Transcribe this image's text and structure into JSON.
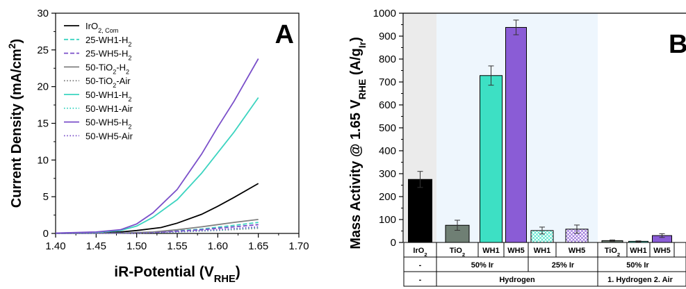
{
  "chart_data": [
    {
      "panel": "A",
      "type": "line",
      "xlabel": "iR-Potential (V",
      "xlabel_sub": "RHE",
      "xlabel_end": ")",
      "ylabel": "Current Density (mA/cm",
      "ylabel_sup": "2",
      "ylabel_end": ")",
      "xlim": [
        1.4,
        1.7
      ],
      "ylim": [
        0,
        30
      ],
      "xticks": [
        "1.40",
        "1.45",
        "1.50",
        "1.55",
        "1.60",
        "1.65",
        "1.70"
      ],
      "yticks": [
        "0",
        "5",
        "10",
        "15",
        "20",
        "25",
        "30"
      ],
      "legend_position": "top-right",
      "series": [
        {
          "name": "IrO",
          "sub": "2, Com",
          "color": "#000000",
          "dash": "solid",
          "x": [
            1.4,
            1.45,
            1.48,
            1.5,
            1.53,
            1.55,
            1.58,
            1.6,
            1.62,
            1.65
          ],
          "y": [
            0.05,
            0.1,
            0.2,
            0.4,
            0.8,
            1.4,
            2.6,
            3.7,
            4.9,
            6.8
          ]
        },
        {
          "name": "25-WH1-H",
          "sub": "2",
          "color": "#3cd4c0",
          "dash": "dashed",
          "x": [
            1.4,
            1.48,
            1.52,
            1.55,
            1.58,
            1.6,
            1.62,
            1.65
          ],
          "y": [
            0.0,
            0.05,
            0.15,
            0.35,
            0.6,
            0.85,
            1.1,
            1.5
          ]
        },
        {
          "name": "25-WH5-H",
          "sub": "2",
          "color": "#7a4fc9",
          "dash": "dashed",
          "x": [
            1.4,
            1.48,
            1.52,
            1.55,
            1.58,
            1.6,
            1.62,
            1.65
          ],
          "y": [
            0.0,
            0.05,
            0.12,
            0.3,
            0.5,
            0.7,
            0.9,
            1.2
          ]
        },
        {
          "name": "50-TiO",
          "sub": "2",
          "name_end": "-H",
          "sub2": "2",
          "color": "#808080",
          "dash": "solid",
          "x": [
            1.4,
            1.48,
            1.52,
            1.55,
            1.58,
            1.6,
            1.62,
            1.65
          ],
          "y": [
            0.0,
            0.05,
            0.2,
            0.5,
            0.9,
            1.2,
            1.5,
            1.9
          ]
        },
        {
          "name": "50-TiO",
          "sub": "2",
          "name_end": "-Air",
          "sub2": "",
          "color": "#808080",
          "dash": "dotted",
          "x": [
            1.4,
            1.5,
            1.55,
            1.6,
            1.65
          ],
          "y": [
            0.0,
            0.05,
            0.2,
            0.4,
            0.7
          ]
        },
        {
          "name": "50-WH1-H",
          "sub": "2",
          "color": "#3cd4c0",
          "dash": "solid",
          "x": [
            1.4,
            1.45,
            1.48,
            1.5,
            1.52,
            1.55,
            1.58,
            1.6,
            1.62,
            1.65
          ],
          "y": [
            0.05,
            0.15,
            0.4,
            1.0,
            2.2,
            4.6,
            8.2,
            11.0,
            13.8,
            18.5
          ]
        },
        {
          "name": "50-WH1-Air",
          "sub": "",
          "color": "#3cd4c0",
          "dash": "dotted",
          "x": [
            1.4,
            1.5,
            1.55,
            1.6,
            1.65
          ],
          "y": [
            0.0,
            0.05,
            0.2,
            0.45,
            0.8
          ]
        },
        {
          "name": "50-WH5-H",
          "sub": "2",
          "color": "#7a4fc9",
          "dash": "solid",
          "x": [
            1.4,
            1.45,
            1.48,
            1.5,
            1.52,
            1.55,
            1.58,
            1.6,
            1.62,
            1.65
          ],
          "y": [
            0.05,
            0.2,
            0.5,
            1.3,
            2.8,
            6.0,
            10.8,
            14.5,
            18.0,
            23.8
          ]
        },
        {
          "name": "50-WH5-Air",
          "sub": "",
          "color": "#7a4fc9",
          "dash": "dotted",
          "x": [
            1.4,
            1.5,
            1.55,
            1.6,
            1.65
          ],
          "y": [
            0.0,
            0.05,
            0.25,
            0.5,
            0.9
          ]
        }
      ]
    },
    {
      "panel": "B",
      "type": "bar",
      "ylabel": "Mass Activity @ 1.65 V",
      "ylabel_sub": "RHE",
      "ylabel_mid": " (A/g",
      "ylabel_sub2": "Ir",
      "ylabel_end": ")",
      "ylim": [
        0,
        1000
      ],
      "yticks": [
        "0",
        "100",
        "200",
        "300",
        "400",
        "500",
        "600",
        "700",
        "800",
        "900",
        "1000"
      ],
      "bars": [
        {
          "label": "IrO",
          "label_sub": "2",
          "value": 275,
          "error": 35,
          "color": "#000000",
          "pattern": "solid"
        },
        {
          "label": "TiO",
          "label_sub": "2",
          "value": 75,
          "error": 22,
          "color": "#6f7f74",
          "pattern": "solid"
        },
        {
          "label": "WH1",
          "label_sub": "",
          "value": 728,
          "error": 42,
          "color": "#3de0c4",
          "pattern": "solid"
        },
        {
          "label": "WH5",
          "label_sub": "",
          "value": 938,
          "error": 32,
          "color": "#8a5cd6",
          "pattern": "solid"
        },
        {
          "label": "WH1",
          "label_sub": "",
          "value": 52,
          "error": 15,
          "color": "#3de0c4",
          "pattern": "hatch"
        },
        {
          "label": "WH5",
          "label_sub": "",
          "value": 58,
          "error": 18,
          "color": "#8a5cd6",
          "pattern": "hatch"
        },
        {
          "label": "TiO",
          "label_sub": "2",
          "value": 8,
          "error": 3,
          "color": "#6f7f74",
          "pattern": "solid"
        },
        {
          "label": "WH1",
          "label_sub": "",
          "value": 5,
          "error": 2,
          "color": "#3de0c4",
          "pattern": "solid"
        },
        {
          "label": "WH5",
          "label_sub": "",
          "value": 30,
          "error": 8,
          "color": "#8a5cd6",
          "pattern": "solid"
        }
      ],
      "row1": [
        "-",
        "50% Ir",
        "25% Ir",
        "50% Ir"
      ],
      "row2": [
        "-",
        "Hydrogen",
        "1. Hydrogen  2. Air"
      ]
    }
  ]
}
